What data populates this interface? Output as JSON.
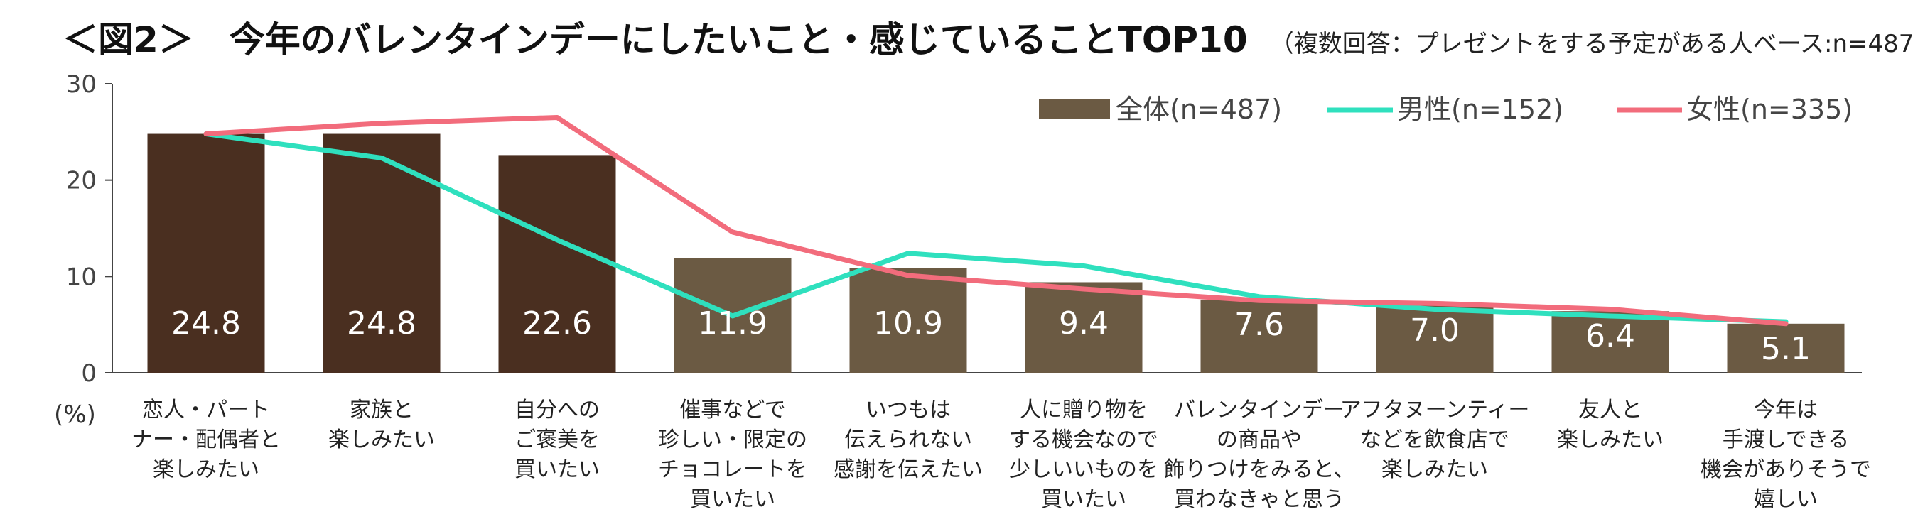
{
  "title": "＜図2＞　今年のバレンタインデーにしたいこと・感じていることTOP10",
  "subtitle": "（複数回答：プレゼントをする予定がある人ベース:n=487）",
  "chart_data": {
    "type": "bar",
    "ylabel": "(%)",
    "ylim": [
      0,
      30
    ],
    "yticks": [
      "0",
      "10",
      "20",
      "30"
    ],
    "grid": false,
    "legend_position": "top-right",
    "categories": [
      [
        "恋人・パート",
        "ナー・配偶者と",
        "楽しみたい"
      ],
      [
        "家族と",
        "楽しみたい"
      ],
      [
        "自分への",
        "ご褒美を",
        "買いたい"
      ],
      [
        "催事などで",
        "珍しい・限定の",
        "チョコレートを",
        "買いたい"
      ],
      [
        "いつもは",
        "伝えられない",
        "感謝を伝えたい"
      ],
      [
        "人に贈り物を",
        "する機会なので",
        "少しいいものを",
        "買いたい"
      ],
      [
        "バレンタインデー",
        "の商品や",
        "飾りつけをみると、",
        "買わなきゃと思う"
      ],
      [
        "アフタヌーンティー",
        "などを飲食店で",
        "楽しみたい"
      ],
      [
        "友人と",
        "楽しみたい"
      ],
      [
        "今年は",
        "手渡しできる",
        "機会がありそうで",
        "嬉しい"
      ]
    ],
    "series": [
      {
        "name": "全体(n=487)",
        "type": "bar",
        "values": [
          24.8,
          24.8,
          22.6,
          11.9,
          10.9,
          9.4,
          7.6,
          7.0,
          6.4,
          5.1
        ],
        "labels": [
          "24.8",
          "24.8",
          "22.6",
          "11.9",
          "10.9",
          "9.4",
          "7.6",
          "7.0",
          "6.4",
          "5.1"
        ],
        "colors": [
          "#4a2f20",
          "#4a2f20",
          "#4a2f20",
          "#6b5a43",
          "#6b5a43",
          "#6b5a43",
          "#6b5a43",
          "#6b5a43",
          "#6b5a43",
          "#6b5a43"
        ]
      },
      {
        "name": "男性(n=152)",
        "type": "line",
        "color": "#2fe0be",
        "values": [
          24.8,
          22.3,
          13.8,
          5.9,
          12.4,
          11.1,
          7.9,
          6.6,
          5.9,
          5.3
        ]
      },
      {
        "name": "女性(n=335)",
        "type": "line",
        "color": "#f26c7c",
        "values": [
          24.8,
          25.9,
          26.5,
          14.6,
          10.1,
          8.7,
          7.5,
          7.2,
          6.6,
          5.1
        ]
      }
    ]
  }
}
